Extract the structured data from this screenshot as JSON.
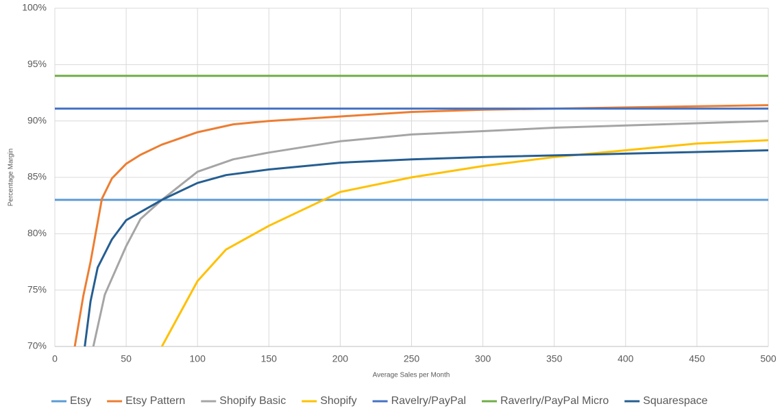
{
  "chart_data": {
    "type": "line",
    "xlabel": "Average Sales per Month",
    "ylabel": "Percentage Margin",
    "xlim": [
      0,
      500
    ],
    "xticks": [
      0,
      50,
      100,
      150,
      200,
      250,
      300,
      350,
      400,
      450,
      500
    ],
    "ylim": [
      70,
      100
    ],
    "yticks": [
      {
        "value": 70,
        "label": "70%"
      },
      {
        "value": 75,
        "label": "75%"
      },
      {
        "value": 80,
        "label": "80%"
      },
      {
        "value": 85,
        "label": "85%"
      },
      {
        "value": 90,
        "label": "90%"
      },
      {
        "value": 95,
        "label": "95%"
      },
      {
        "value": 100,
        "label": "100%"
      }
    ],
    "grid": true,
    "legend": "bottom",
    "series": [
      {
        "name": "Etsy",
        "color": "#5b9bd5",
        "x": [
          0,
          500
        ],
        "values": [
          83,
          83
        ]
      },
      {
        "name": "Etsy Pattern",
        "color": "#ed7d31",
        "x": [
          14,
          20,
          25,
          33,
          40,
          50,
          60,
          75,
          100,
          125,
          150,
          200,
          250,
          300,
          350,
          400,
          450,
          500
        ],
        "values": [
          70,
          74.5,
          77.5,
          83.1,
          84.9,
          86.2,
          87,
          87.9,
          89,
          89.7,
          90,
          90.4,
          90.8,
          91,
          91.1,
          91.2,
          91.3,
          91.4
        ]
      },
      {
        "name": "Shopify Basic",
        "color": "#a5a5a5",
        "x": [
          27,
          35,
          50,
          60,
          75,
          100,
          125,
          150,
          200,
          250,
          300,
          350,
          400,
          450,
          500
        ],
        "values": [
          70,
          74.6,
          78.9,
          81.3,
          83,
          85.5,
          86.6,
          87.2,
          88.2,
          88.8,
          89.1,
          89.4,
          89.6,
          89.8,
          90
        ]
      },
      {
        "name": "Shopify",
        "color": "#ffc000",
        "x": [
          75,
          100,
          120,
          150,
          190,
          200,
          250,
          300,
          350,
          400,
          450,
          500
        ],
        "values": [
          70,
          75.8,
          78.6,
          80.7,
          83.1,
          83.7,
          85,
          86,
          86.8,
          87.4,
          88,
          88.3
        ]
      },
      {
        "name": "Ravelry/PayPal",
        "color": "#4472c4",
        "x": [
          0,
          500
        ],
        "values": [
          91.1,
          91.1
        ]
      },
      {
        "name": "Raverlry/PayPal Micro",
        "color": "#70ad47",
        "x": [
          0,
          500
        ],
        "values": [
          94,
          94
        ]
      },
      {
        "name": "Squarespace",
        "color": "#255e91",
        "x": [
          21,
          25,
          30,
          40,
          50,
          75,
          100,
          120,
          150,
          200,
          250,
          300,
          400,
          500
        ],
        "values": [
          70,
          74,
          77,
          79.5,
          81.2,
          83,
          84.5,
          85.2,
          85.7,
          86.3,
          86.6,
          86.8,
          87.1,
          87.4
        ]
      }
    ]
  }
}
